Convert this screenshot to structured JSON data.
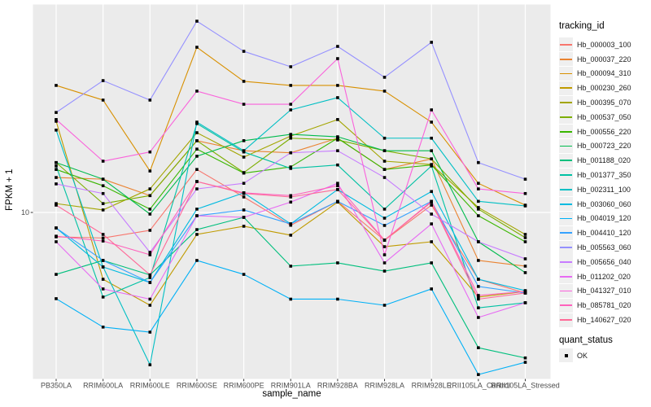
{
  "chart_data": {
    "type": "line",
    "title": "",
    "xlabel": "sample_name",
    "ylabel": "FPKM + 1",
    "legend_title": "tracking_id",
    "quant_title": "quant_status",
    "quant_label": "OK",
    "y_scale": "log10",
    "ylim": [
      1.4,
      115
    ],
    "y_ticks": [
      {
        "value": 10,
        "label": "10"
      }
    ],
    "marker": "black-square",
    "marker_color": "#000000",
    "layout": {
      "panel_bg": "#EBEBEB",
      "grid": "#FFFFFF",
      "legend_position": "right",
      "grid_on": true
    },
    "categories": [
      "PB350LA",
      "RRIM600LA",
      "RRIM600LE",
      "RRIM600SE",
      "RRIM600PE",
      "RRIM901LA",
      "RRIM928BA",
      "RRIM928LA",
      "RRIM928LE",
      "RRII105LA_Control",
      "RRII105LA_Stressed"
    ],
    "series": [
      {
        "name": "Hb_000003_100",
        "color": "#F8766D",
        "values": [
          7.5,
          7.4,
          8.1,
          16.6,
          12.0,
          8.6,
          11.4,
          7.2,
          10.9,
          4.55,
          3.87
        ]
      },
      {
        "name": "Hb_000037_220",
        "color": "#EA8331",
        "values": [
          15.1,
          14.8,
          12.2,
          23.3,
          20.7,
          20.2,
          24.0,
          16.6,
          18.8,
          5.68,
          5.31
        ]
      },
      {
        "name": "Hb_000094_310",
        "color": "#D89000",
        "values": [
          44.7,
          37.6,
          16.3,
          70.1,
          46.9,
          44.7,
          44.7,
          41.8,
          29.0,
          14.1,
          10.9
        ]
      },
      {
        "name": "Hb_000230_260",
        "color": "#C09B00",
        "values": [
          29.3,
          4.55,
          3.35,
          7.72,
          8.5,
          7.65,
          11.3,
          6.68,
          7.08,
          3.69,
          3.94
        ]
      },
      {
        "name": "Hb_000395_070",
        "color": "#A3A500",
        "values": [
          11.1,
          10.3,
          13.2,
          25.6,
          19.2,
          24.6,
          29.9,
          18.3,
          17.6,
          10.6,
          7.72
        ]
      },
      {
        "name": "Hb_000537_050",
        "color": "#7CAE00",
        "values": [
          18.0,
          11.1,
          12.2,
          23.3,
          16.0,
          24.0,
          23.5,
          20.7,
          18.8,
          10.4,
          7.43
        ]
      },
      {
        "name": "Hb_000556_220",
        "color": "#39B600",
        "values": [
          16.6,
          13.7,
          10.4,
          21.1,
          15.9,
          17.1,
          24.0,
          16.6,
          17.5,
          9.62,
          7.08
        ]
      },
      {
        "name": "Hb_000723_220",
        "color": "#00BB4E",
        "values": [
          18.0,
          14.8,
          9.81,
          19.4,
          23.3,
          25.1,
          24.4,
          20.7,
          20.7,
          7.08,
          4.92
        ]
      },
      {
        "name": "Hb_001188_020",
        "color": "#00BF7D",
        "values": [
          4.82,
          5.68,
          4.79,
          8.17,
          9.44,
          5.31,
          5.52,
          5.01,
          5.52,
          2.03,
          1.8
        ]
      },
      {
        "name": "Hb_001377_350",
        "color": "#00C1A3",
        "values": [
          17.3,
          3.69,
          4.64,
          28.5,
          20.4,
          16.8,
          17.5,
          10.4,
          17.3,
          3.25,
          3.45
        ]
      },
      {
        "name": "Hb_002311_100",
        "color": "#00BFC4",
        "values": [
          26.4,
          5.26,
          1.66,
          29.0,
          20.7,
          33.5,
          38.7,
          24.0,
          24.0,
          11.4,
          10.8
        ]
      },
      {
        "name": "Hb_003060_060",
        "color": "#00BAE0",
        "values": [
          8.33,
          5.26,
          4.38,
          10.4,
          12.6,
          8.74,
          13.1,
          9.35,
          12.8,
          4.55,
          3.98
        ]
      },
      {
        "name": "Hb_004019_120",
        "color": "#00B0F6",
        "values": [
          3.62,
          2.59,
          2.44,
          5.68,
          4.82,
          3.6,
          3.6,
          3.35,
          4.06,
          1.48,
          1.71
        ]
      },
      {
        "name": "Hb_004410_120",
        "color": "#35A2FF",
        "values": [
          8.33,
          5.68,
          4.38,
          9.62,
          10.3,
          8.74,
          11.4,
          8.58,
          11.4,
          4.18,
          3.87
        ]
      },
      {
        "name": "Hb_005563_060",
        "color": "#9590FF",
        "values": [
          32.5,
          47.3,
          37.6,
          95.3,
          66.8,
          55.7,
          70.8,
          49.2,
          74.3,
          18.0,
          14.8
        ]
      },
      {
        "name": "Hb_005656_040",
        "color": "#C77CFF",
        "values": [
          14.0,
          12.5,
          6.25,
          13.2,
          14.1,
          20.2,
          20.7,
          15.1,
          9.81,
          7.08,
          5.79
        ]
      },
      {
        "name": "Hb_011202_020",
        "color": "#E76BF3",
        "values": [
          7.08,
          4.06,
          3.6,
          9.62,
          9.44,
          11.3,
          14.1,
          5.52,
          8.74,
          2.9,
          3.45
        ]
      },
      {
        "name": "Hb_041327_010",
        "color": "#FA62DB",
        "values": [
          29.9,
          18.3,
          20.4,
          41.8,
          35.8,
          35.8,
          61.3,
          6.07,
          33.5,
          13.2,
          12.5
        ]
      },
      {
        "name": "Hb_085781_020",
        "color": "#FF62BC",
        "values": [
          7.56,
          7.14,
          6.07,
          14.4,
          12.6,
          12.2,
          13.7,
          7.22,
          11.4,
          3.76,
          3.94
        ]
      },
      {
        "name": "Hb_140627_020",
        "color": "#FF6A98",
        "values": [
          10.9,
          7.72,
          4.79,
          14.4,
          12.5,
          12.0,
          13.1,
          7.22,
          11.3,
          3.6,
          3.87
        ]
      }
    ]
  }
}
